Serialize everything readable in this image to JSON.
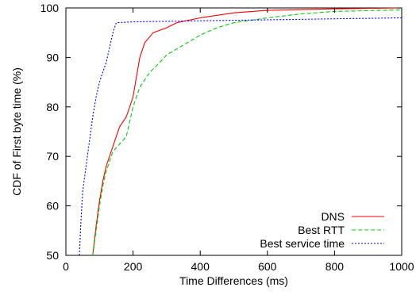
{
  "chart_data": {
    "type": "line",
    "title": "",
    "xlabel": "Time Differences (ms)",
    "ylabel": "CDF of First byte time (%)",
    "xlim": [
      0,
      1000
    ],
    "ylim": [
      50,
      100
    ],
    "x_ticks": [
      "0",
      "200",
      "400",
      "600",
      "800",
      "1000"
    ],
    "y_ticks": [
      "50",
      "60",
      "70",
      "80",
      "90",
      "100"
    ],
    "grid": false,
    "legend_position": "bottom-right",
    "series": [
      {
        "name": "DNS",
        "color": "#ff0000",
        "style": "solid",
        "points": [
          [
            80,
            50
          ],
          [
            90,
            56
          ],
          [
            100,
            61
          ],
          [
            110,
            65
          ],
          [
            120,
            68
          ],
          [
            140,
            72
          ],
          [
            150,
            74
          ],
          [
            160,
            76
          ],
          [
            180,
            78
          ],
          [
            200,
            82
          ],
          [
            210,
            86
          ],
          [
            220,
            90
          ],
          [
            235,
            93
          ],
          [
            260,
            95
          ],
          [
            300,
            96
          ],
          [
            330,
            97
          ],
          [
            400,
            98
          ],
          [
            500,
            99
          ],
          [
            600,
            99.5
          ],
          [
            800,
            99.8
          ],
          [
            1000,
            100
          ]
        ]
      },
      {
        "name": "Best RTT",
        "color": "#00cc00",
        "style": "dashed",
        "points": [
          [
            80,
            50
          ],
          [
            90,
            55
          ],
          [
            100,
            60
          ],
          [
            110,
            64
          ],
          [
            120,
            67
          ],
          [
            140,
            71
          ],
          [
            160,
            72.5
          ],
          [
            180,
            74
          ],
          [
            200,
            80
          ],
          [
            220,
            84
          ],
          [
            250,
            87
          ],
          [
            280,
            89
          ],
          [
            300,
            90.5
          ],
          [
            350,
            92.5
          ],
          [
            400,
            94.5
          ],
          [
            450,
            96
          ],
          [
            500,
            97
          ],
          [
            600,
            98
          ],
          [
            700,
            98.8
          ],
          [
            800,
            99.3
          ],
          [
            1000,
            99.6
          ]
        ]
      },
      {
        "name": "Best service time",
        "color": "#0000ff",
        "style": "dotted",
        "points": [
          [
            40,
            50
          ],
          [
            45,
            57
          ],
          [
            50,
            63
          ],
          [
            60,
            68
          ],
          [
            70,
            73
          ],
          [
            80,
            78
          ],
          [
            90,
            82
          ],
          [
            100,
            85
          ],
          [
            110,
            87
          ],
          [
            120,
            89
          ],
          [
            130,
            92
          ],
          [
            140,
            95
          ],
          [
            150,
            97
          ],
          [
            200,
            97.2
          ],
          [
            400,
            97.4
          ],
          [
            600,
            97.6
          ],
          [
            800,
            97.8
          ],
          [
            1000,
            98
          ]
        ]
      }
    ]
  }
}
